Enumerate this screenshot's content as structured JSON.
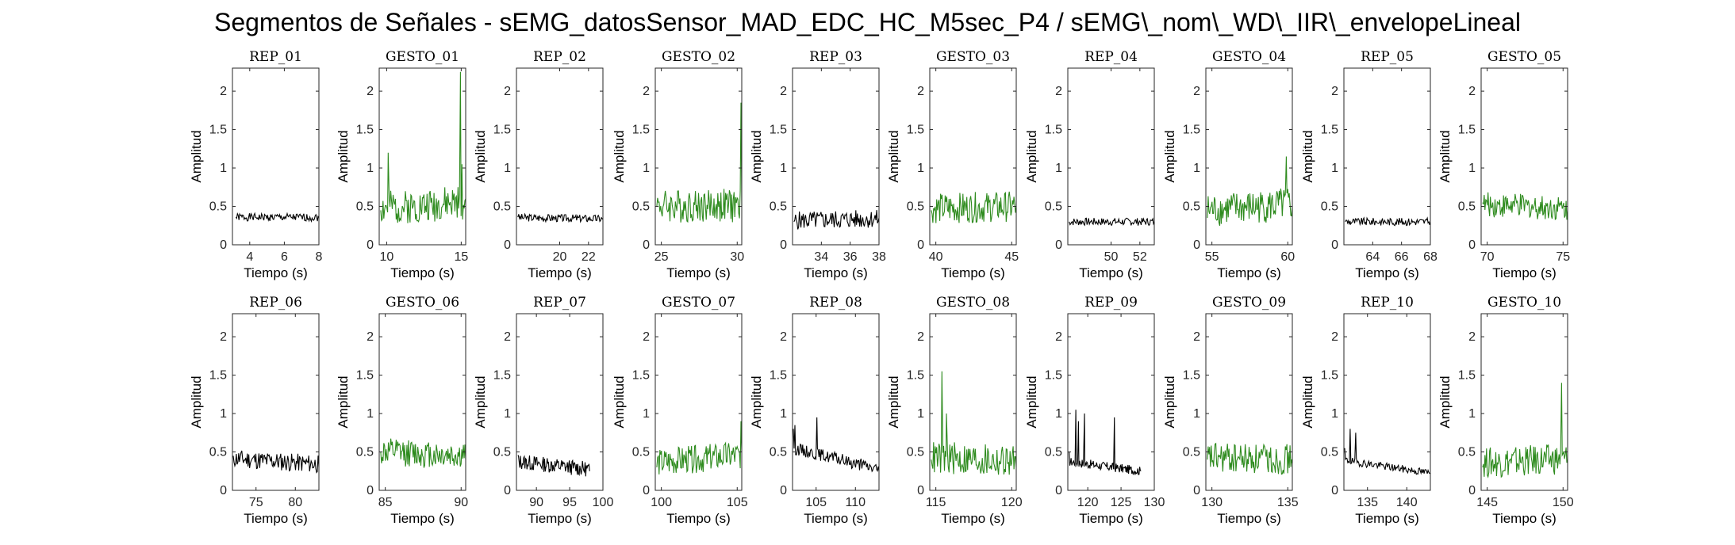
{
  "figure": {
    "title": "Segmentos de Señales - sEMG_datosSensor_MAD_EDC_HC_M5sec_P4 / sEMG\\_nom\\_WD\\_IIR\\_envelopeLineal"
  },
  "colors": {
    "rep": "#000000",
    "gesto": "#2E8B1E"
  },
  "chart_data": [
    {
      "type": "line",
      "title": "REP_01",
      "xlabel": "Tiempo (s)",
      "ylabel": "Amplitud",
      "xlim": [
        3,
        8
      ],
      "ylim": [
        0,
        2.3
      ],
      "xticks": [
        4,
        6,
        8
      ],
      "yticks": [
        0,
        0.5,
        1,
        1.5,
        2
      ],
      "ytick_labels": [
        "0",
        "0.5",
        "1",
        "1.5",
        "2"
      ],
      "color": "#000000",
      "x": [
        3.2,
        8
      ],
      "y": [
        0.36,
        0.35
      ],
      "noise": {
        "base": 0.36,
        "amp": 0.05,
        "seed": 1
      }
    },
    {
      "type": "line",
      "title": "GESTO_01",
      "xlabel": "Tiempo (s)",
      "ylabel": "Amplitud",
      "xlim": [
        9.5,
        15.3
      ],
      "ylim": [
        0,
        2.3
      ],
      "xticks": [
        10,
        15
      ],
      "yticks": [
        0,
        0.5,
        1,
        1.5,
        2
      ],
      "ytick_labels": [
        "0",
        "0.5",
        "1",
        "1.5",
        "2"
      ],
      "color": "#2E8B1E",
      "x": [
        9.6,
        15.3
      ],
      "y": [
        0.45,
        0.6
      ],
      "noise": {
        "base": 0.5,
        "amp": 0.22,
        "seed": 2
      },
      "spikes": [
        [
          10.1,
          1.2
        ],
        [
          14.95,
          2.25
        ],
        [
          15.05,
          1.05
        ]
      ]
    },
    {
      "type": "line",
      "title": "REP_02",
      "xlabel": "Tiempo (s)",
      "ylabel": "Amplitud",
      "xlim": [
        17,
        23
      ],
      "ylim": [
        0,
        2.3
      ],
      "xticks": [
        20,
        22
      ],
      "yticks": [
        0,
        0.5,
        1,
        1.5,
        2
      ],
      "ytick_labels": [
        "0",
        "0.5",
        "1",
        "1.5",
        "2"
      ],
      "color": "#000000",
      "x": [
        17.1,
        23
      ],
      "y": [
        0.36,
        0.33
      ],
      "noise": {
        "base": 0.35,
        "amp": 0.05,
        "seed": 3
      }
    },
    {
      "type": "line",
      "title": "GESTO_02",
      "xlabel": "Tiempo (s)",
      "ylabel": "Amplitud",
      "xlim": [
        24.6,
        30.3
      ],
      "ylim": [
        0,
        2.3
      ],
      "xticks": [
        25,
        30
      ],
      "yticks": [
        0,
        0.5,
        1,
        1.5,
        2
      ],
      "ytick_labels": [
        "0",
        "0.5",
        "1",
        "1.5",
        "2"
      ],
      "color": "#2E8B1E",
      "x": [
        24.7,
        30.3
      ],
      "y": [
        0.5,
        0.5
      ],
      "noise": {
        "base": 0.52,
        "amp": 0.22,
        "seed": 4
      },
      "spikes": [
        [
          30.25,
          1.85
        ]
      ]
    },
    {
      "type": "line",
      "title": "REP_03",
      "xlabel": "Tiempo (s)",
      "ylabel": "Amplitud",
      "xlim": [
        32,
        38
      ],
      "ylim": [
        0,
        2.3
      ],
      "xticks": [
        34,
        36,
        38
      ],
      "yticks": [
        0,
        0.5,
        1,
        1.5,
        2
      ],
      "ytick_labels": [
        "0",
        "0.5",
        "1",
        "1.5",
        "2"
      ],
      "color": "#000000",
      "x": [
        32.1,
        38
      ],
      "y": [
        0.3,
        0.35
      ],
      "noise": {
        "base": 0.33,
        "amp": 0.12,
        "seed": 5
      }
    },
    {
      "type": "line",
      "title": "GESTO_03",
      "xlabel": "Tiempo (s)",
      "ylabel": "Amplitud",
      "xlim": [
        39.6,
        45.3
      ],
      "ylim": [
        0,
        2.3
      ],
      "xticks": [
        40,
        45
      ],
      "yticks": [
        0,
        0.5,
        1,
        1.5,
        2
      ],
      "ytick_labels": [
        "0",
        "0.5",
        "1",
        "1.5",
        "2"
      ],
      "color": "#2E8B1E",
      "x": [
        39.7,
        45.3
      ],
      "y": [
        0.45,
        0.5
      ],
      "noise": {
        "base": 0.5,
        "amp": 0.2,
        "seed": 6
      }
    },
    {
      "type": "line",
      "title": "REP_04",
      "xlabel": "Tiempo (s)",
      "ylabel": "Amplitud",
      "xlim": [
        47,
        53
      ],
      "ylim": [
        0,
        2.3
      ],
      "xticks": [
        50,
        52
      ],
      "yticks": [
        0,
        0.5,
        1,
        1.5,
        2
      ],
      "ytick_labels": [
        "0",
        "0.5",
        "1",
        "1.5",
        "2"
      ],
      "color": "#000000",
      "x": [
        47.1,
        53
      ],
      "y": [
        0.3,
        0.3
      ],
      "noise": {
        "base": 0.3,
        "amp": 0.05,
        "seed": 7
      }
    },
    {
      "type": "line",
      "title": "GESTO_04",
      "xlabel": "Tiempo (s)",
      "ylabel": "Amplitud",
      "xlim": [
        54.6,
        60.3
      ],
      "ylim": [
        0,
        2.3
      ],
      "xticks": [
        55,
        60
      ],
      "yticks": [
        0,
        0.5,
        1,
        1.5,
        2
      ],
      "ytick_labels": [
        "0",
        "0.5",
        "1",
        "1.5",
        "2"
      ],
      "color": "#2E8B1E",
      "x": [
        54.7,
        60.3
      ],
      "y": [
        0.35,
        0.5
      ],
      "noise": {
        "base": 0.55,
        "amp": 0.22,
        "seed": 8
      },
      "spikes": [
        [
          59.9,
          1.15
        ]
      ]
    },
    {
      "type": "line",
      "title": "REP_05",
      "xlabel": "Tiempo (s)",
      "ylabel": "Amplitud",
      "xlim": [
        62,
        68
      ],
      "ylim": [
        0,
        2.3
      ],
      "xticks": [
        64,
        66,
        68
      ],
      "yticks": [
        0,
        0.5,
        1,
        1.5,
        2
      ],
      "ytick_labels": [
        "0",
        "0.5",
        "1",
        "1.5",
        "2"
      ],
      "color": "#000000",
      "x": [
        62.1,
        68
      ],
      "y": [
        0.3,
        0.3
      ],
      "noise": {
        "base": 0.3,
        "amp": 0.05,
        "seed": 9
      }
    },
    {
      "type": "line",
      "title": "GESTO_05",
      "xlabel": "Tiempo (s)",
      "ylabel": "Amplitud",
      "xlim": [
        69.6,
        75.3
      ],
      "ylim": [
        0,
        2.3
      ],
      "xticks": [
        70,
        75
      ],
      "yticks": [
        0,
        0.5,
        1,
        1.5,
        2
      ],
      "ytick_labels": [
        "0",
        "0.5",
        "1",
        "1.5",
        "2"
      ],
      "color": "#2E8B1E",
      "x": [
        69.7,
        75.3
      ],
      "y": [
        0.55,
        0.45
      ],
      "noise": {
        "base": 0.5,
        "amp": 0.16,
        "seed": 10
      }
    },
    {
      "type": "line",
      "title": "REP_06",
      "xlabel": "Tiempo (s)",
      "ylabel": "Amplitud",
      "xlim": [
        72,
        83
      ],
      "ylim": [
        0,
        2.3
      ],
      "xticks": [
        75,
        80
      ],
      "yticks": [
        0,
        0.5,
        1,
        1.5,
        2
      ],
      "ytick_labels": [
        "0",
        "0.5",
        "1",
        "1.5",
        "2"
      ],
      "color": "#000000",
      "x": [
        72.1,
        83
      ],
      "y": [
        0.45,
        0.3
      ],
      "noise": {
        "base": 0.38,
        "amp": 0.12,
        "seed": 11
      }
    },
    {
      "type": "line",
      "title": "GESTO_06",
      "xlabel": "Tiempo (s)",
      "ylabel": "Amplitud",
      "xlim": [
        84.6,
        90.3
      ],
      "ylim": [
        0,
        2.3
      ],
      "xticks": [
        85,
        90
      ],
      "yticks": [
        0,
        0.5,
        1,
        1.5,
        2
      ],
      "ytick_labels": [
        "0",
        "0.5",
        "1",
        "1.5",
        "2"
      ],
      "color": "#2E8B1E",
      "x": [
        84.7,
        90.3
      ],
      "y": [
        0.5,
        0.4
      ],
      "noise": {
        "base": 0.5,
        "amp": 0.18,
        "seed": 12
      }
    },
    {
      "type": "line",
      "title": "REP_07",
      "xlabel": "Tiempo (s)",
      "ylabel": "Amplitud",
      "xlim": [
        87,
        100
      ],
      "ylim": [
        0,
        2.3
      ],
      "xticks": [
        90,
        95,
        100
      ],
      "yticks": [
        0,
        0.5,
        1,
        1.5,
        2
      ],
      "ytick_labels": [
        "0",
        "0.5",
        "1",
        "1.5",
        "2"
      ],
      "color": "#000000",
      "x": [
        87.2,
        98
      ],
      "y": [
        0.45,
        0.25
      ],
      "noise": {
        "base": 0.3,
        "amp": 0.1,
        "seed": 13
      }
    },
    {
      "type": "line",
      "title": "GESTO_07",
      "xlabel": "Tiempo (s)",
      "ylabel": "Amplitud",
      "xlim": [
        99.6,
        105.3
      ],
      "ylim": [
        0,
        2.3
      ],
      "xticks": [
        100,
        105
      ],
      "yticks": [
        0,
        0.5,
        1,
        1.5,
        2
      ],
      "ytick_labels": [
        "0",
        "0.5",
        "1",
        "1.5",
        "2"
      ],
      "color": "#2E8B1E",
      "x": [
        99.7,
        105.3
      ],
      "y": [
        0.3,
        0.5
      ],
      "noise": {
        "base": 0.42,
        "amp": 0.18,
        "seed": 14
      },
      "spikes": [
        [
          105.25,
          0.9
        ]
      ]
    },
    {
      "type": "line",
      "title": "REP_08",
      "xlabel": "Tiempo (s)",
      "ylabel": "Amplitud",
      "xlim": [
        102,
        113
      ],
      "ylim": [
        0,
        2.3
      ],
      "xticks": [
        105,
        110
      ],
      "yticks": [
        0,
        0.5,
        1,
        1.5,
        2
      ],
      "ytick_labels": [
        "0",
        "0.5",
        "1",
        "1.5",
        "2"
      ],
      "color": "#000000",
      "x": [
        102.1,
        113
      ],
      "y": [
        0.8,
        0.25
      ],
      "noise": {
        "base": 0.3,
        "amp": 0.08,
        "seed": 15
      },
      "spikes": [
        [
          102.3,
          0.85
        ],
        [
          105.1,
          0.95
        ]
      ]
    },
    {
      "type": "line",
      "title": "GESTO_08",
      "xlabel": "Tiempo (s)",
      "ylabel": "Amplitud",
      "xlim": [
        114.6,
        120.3
      ],
      "ylim": [
        0,
        2.3
      ],
      "xticks": [
        115,
        120
      ],
      "yticks": [
        0,
        0.5,
        1,
        1.5,
        2
      ],
      "ytick_labels": [
        "0",
        "0.5",
        "1",
        "1.5",
        "2"
      ],
      "color": "#2E8B1E",
      "x": [
        114.7,
        120.3
      ],
      "y": [
        0.4,
        0.3
      ],
      "noise": {
        "base": 0.45,
        "amp": 0.22,
        "seed": 16
      },
      "spikes": [
        [
          115.4,
          1.55
        ],
        [
          115.7,
          1.0
        ]
      ]
    },
    {
      "type": "line",
      "title": "REP_09",
      "xlabel": "Tiempo (s)",
      "ylabel": "Amplitud",
      "xlim": [
        117,
        130
      ],
      "ylim": [
        0,
        2.3
      ],
      "xticks": [
        120,
        125,
        130
      ],
      "yticks": [
        0,
        0.5,
        1,
        1.5,
        2
      ],
      "ytick_labels": [
        "0",
        "0.5",
        "1",
        "1.5",
        "2"
      ],
      "color": "#000000",
      "x": [
        117.2,
        128
      ],
      "y": [
        0.5,
        0.25
      ],
      "noise": {
        "base": 0.25,
        "amp": 0.06,
        "seed": 17
      },
      "spikes": [
        [
          118.2,
          1.05
        ],
        [
          118.6,
          0.9
        ],
        [
          119.5,
          1.0
        ],
        [
          124,
          0.95
        ]
      ]
    },
    {
      "type": "line",
      "title": "GESTO_09",
      "xlabel": "Tiempo (s)",
      "ylabel": "Amplitud",
      "xlim": [
        129.6,
        135.3
      ],
      "ylim": [
        0,
        2.3
      ],
      "xticks": [
        130,
        135
      ],
      "yticks": [
        0,
        0.5,
        1,
        1.5,
        2
      ],
      "ytick_labels": [
        "0",
        "0.5",
        "1",
        "1.5",
        "2"
      ],
      "color": "#2E8B1E",
      "x": [
        129.7,
        135.3
      ],
      "y": [
        0.4,
        0.35
      ],
      "noise": {
        "base": 0.45,
        "amp": 0.2,
        "seed": 18
      }
    },
    {
      "type": "line",
      "title": "REP_10",
      "xlabel": "Tiempo (s)",
      "ylabel": "Amplitud",
      "xlim": [
        132,
        143
      ],
      "ylim": [
        0,
        2.3
      ],
      "xticks": [
        135,
        140
      ],
      "yticks": [
        0,
        0.5,
        1,
        1.5,
        2
      ],
      "ytick_labels": [
        "0",
        "0.5",
        "1",
        "1.5",
        "2"
      ],
      "color": "#000000",
      "x": [
        132.1,
        143
      ],
      "y": [
        0.55,
        0.22
      ],
      "noise": {
        "base": 0.23,
        "amp": 0.05,
        "seed": 19
      },
      "spikes": [
        [
          132.8,
          0.8
        ],
        [
          133.5,
          0.75
        ]
      ]
    },
    {
      "type": "line",
      "title": "GESTO_10",
      "xlabel": "Tiempo (s)",
      "ylabel": "Amplitud",
      "xlim": [
        144.6,
        150.3
      ],
      "ylim": [
        0,
        2.3
      ],
      "xticks": [
        145,
        150
      ],
      "yticks": [
        0,
        0.5,
        1,
        1.5,
        2
      ],
      "ytick_labels": [
        "0",
        "0.5",
        "1",
        "1.5",
        "2"
      ],
      "color": "#2E8B1E",
      "x": [
        144.7,
        150.3
      ],
      "y": [
        0.3,
        0.4
      ],
      "noise": {
        "base": 0.42,
        "amp": 0.2,
        "seed": 20
      },
      "spikes": [
        [
          149.9,
          1.4
        ]
      ]
    }
  ]
}
